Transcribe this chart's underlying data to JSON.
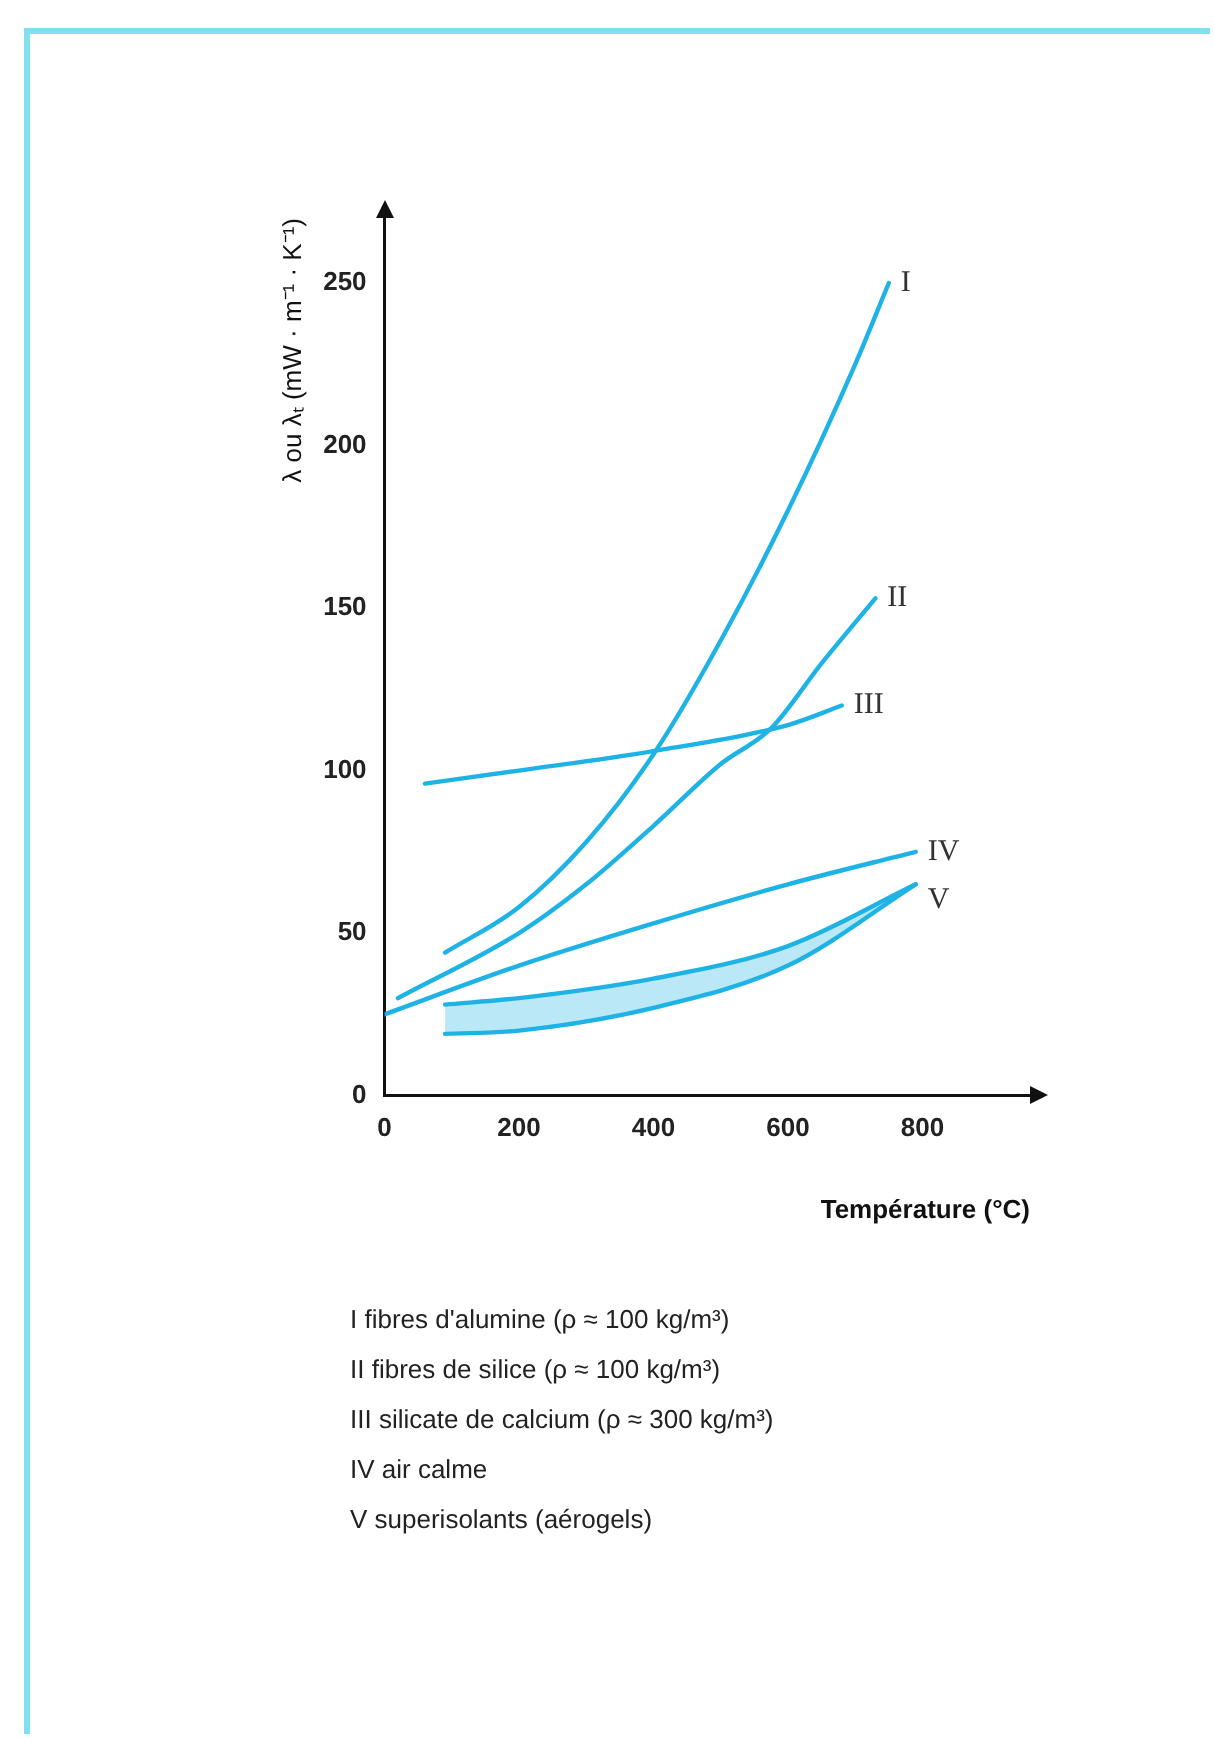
{
  "chart_data": {
    "type": "line",
    "xlabel": "Température (°C)",
    "ylabel": "λ ou λₜ (mW · m⁻¹ · K⁻¹)",
    "xlim": [
      0,
      960
    ],
    "xticks": [
      0,
      200,
      400,
      600,
      800
    ],
    "ylim": [
      0,
      270
    ],
    "yticks": [
      0,
      50,
      100,
      150,
      200,
      250
    ],
    "grid": false,
    "legend": false,
    "marker": "none",
    "line_style": "solid",
    "series": [
      {
        "name": "I",
        "color": "#1fb3e5",
        "x": [
          90,
          200,
          300,
          400,
          500,
          600,
          700,
          750
        ],
        "values": [
          44,
          58,
          78,
          105,
          140,
          180,
          225,
          250
        ]
      },
      {
        "name": "II",
        "color": "#1fb3e5",
        "x": [
          20,
          200,
          300,
          400,
          500,
          575,
          650,
          730
        ],
        "values": [
          30,
          50,
          65,
          83,
          102,
          113,
          133,
          153
        ]
      },
      {
        "name": "III",
        "color": "#1fb3e5",
        "x": [
          60,
          200,
          400,
          600,
          680
        ],
        "values": [
          96,
          100,
          106,
          114,
          120
        ]
      },
      {
        "name": "IV",
        "color": "#1fb3e5",
        "x": [
          0,
          200,
          400,
          600,
          790
        ],
        "values": [
          25,
          40,
          53,
          65,
          75
        ]
      },
      {
        "name": "V",
        "color": "#1fb3e5",
        "x": [
          90,
          200,
          400,
          600,
          790
        ],
        "values": [
          28,
          30,
          36,
          46,
          65
        ],
        "lower": [
          19,
          20,
          27,
          40,
          65
        ],
        "upper": [
          28,
          30,
          36,
          46,
          65
        ]
      }
    ],
    "annotations": [
      "I fibres d'alumine (ρ ≈ 100 kg/m³)",
      "II fibres de silice (ρ ≈ 100 kg/m³)",
      "III silicate de calcium (ρ ≈ 300 kg/m³)",
      "IV air calme",
      "V superisolants (aérogels)"
    ]
  }
}
